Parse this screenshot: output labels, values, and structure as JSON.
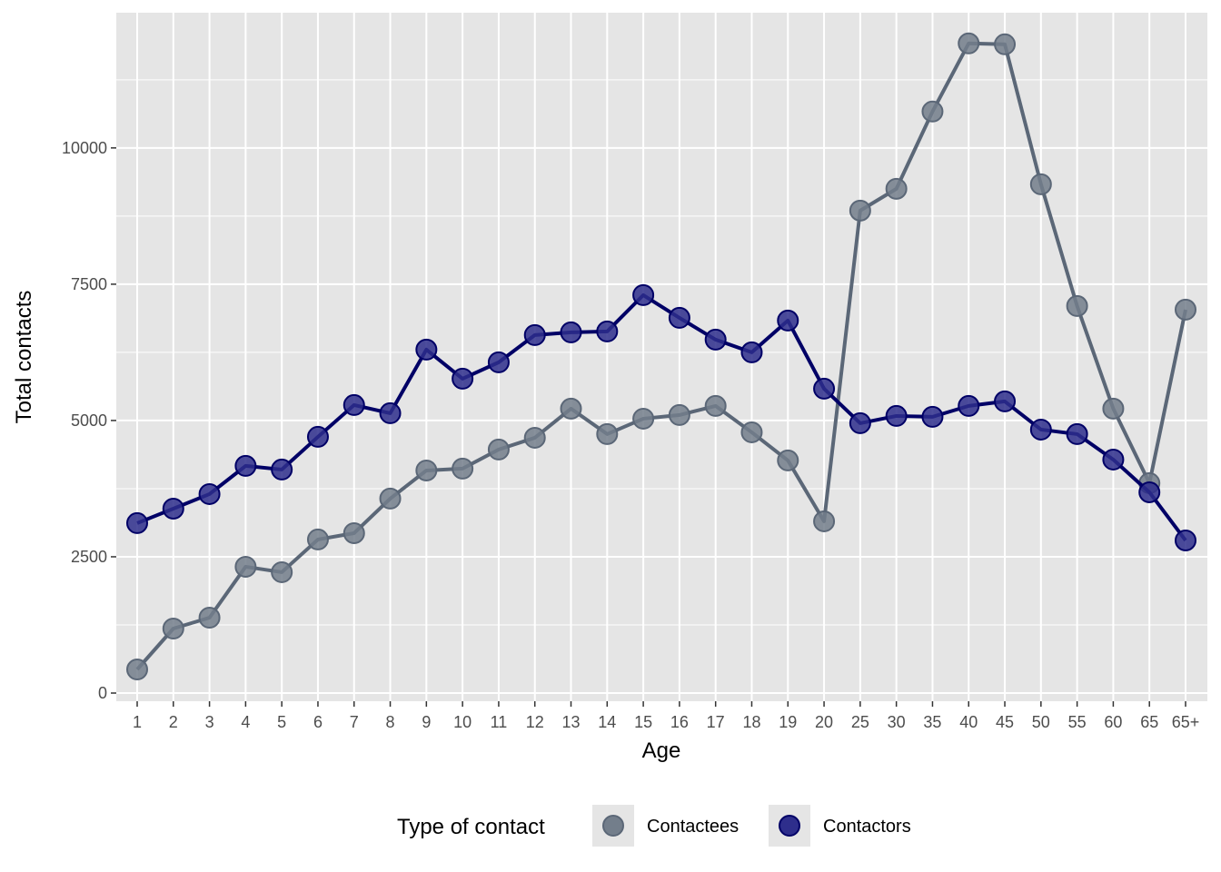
{
  "chart_data": {
    "type": "line",
    "xlabel": "Age",
    "ylabel": "Total contacts",
    "categories": [
      "1",
      "2",
      "3",
      "4",
      "5",
      "6",
      "7",
      "8",
      "9",
      "10",
      "11",
      "12",
      "13",
      "14",
      "15",
      "16",
      "17",
      "18",
      "19",
      "20",
      "25",
      "30",
      "35",
      "40",
      "45",
      "50",
      "55",
      "60",
      "65",
      "65+"
    ],
    "ylim": [
      -150,
      12480
    ],
    "yticks": [
      0,
      2500,
      5000,
      7500,
      10000
    ],
    "ytick_labels": [
      "0",
      "2500",
      "5000",
      "7500",
      "10000"
    ],
    "grid": true,
    "legend": {
      "title": "Type of contact",
      "placement": "bottom"
    },
    "series": [
      {
        "name": "Contactees",
        "line_color": "#5b6777",
        "point_color": "#737e8b",
        "values": [
          433,
          1183,
          1383,
          2317,
          2217,
          2817,
          2933,
          3567,
          4083,
          4117,
          4467,
          4683,
          5217,
          4750,
          5033,
          5100,
          5267,
          4783,
          4267,
          3150,
          8850,
          9250,
          10667,
          11917,
          11900,
          9333,
          7100,
          5217,
          3850,
          7033
        ]
      },
      {
        "name": "Contactors",
        "line_color": "#000066",
        "point_color": "#2e2e8c",
        "values": [
          3117,
          3383,
          3650,
          4167,
          4100,
          4700,
          5283,
          5133,
          6300,
          5767,
          6067,
          6567,
          6617,
          6633,
          7300,
          6883,
          6483,
          6250,
          6833,
          5583,
          4950,
          5083,
          5067,
          5267,
          5350,
          4833,
          4750,
          4283,
          3683,
          2800
        ]
      }
    ]
  }
}
